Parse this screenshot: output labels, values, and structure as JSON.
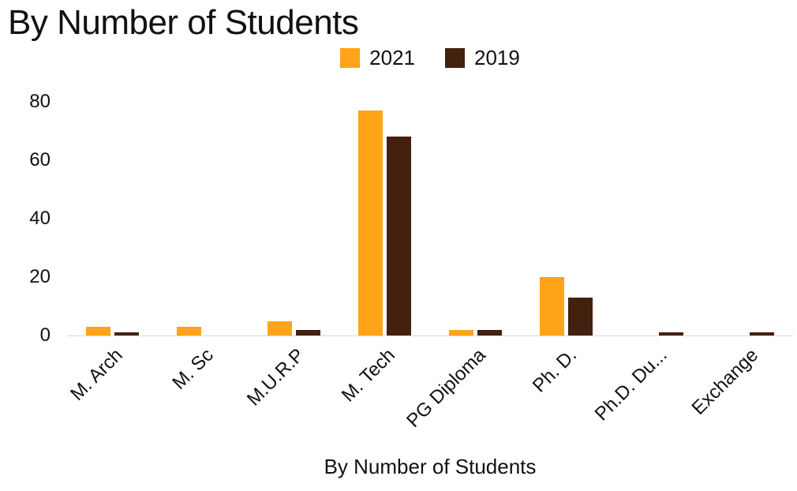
{
  "chart_data": {
    "type": "bar",
    "title": "By Number of Students",
    "xlabel": "By Number of Students",
    "ylabel": "",
    "categories": [
      "M. Arch",
      "M. Sc",
      "M.U.R.P",
      "M. Tech",
      "PG Diploma",
      "Ph. D.",
      "Ph.D. Du...",
      "Exchange"
    ],
    "series": [
      {
        "name": "2021",
        "color": "#FFA319",
        "values": [
          3,
          3,
          5,
          77,
          2,
          20,
          0,
          0
        ]
      },
      {
        "name": "2019",
        "color": "#44200E",
        "values": [
          1,
          0,
          2,
          68,
          2,
          13,
          1,
          1
        ]
      }
    ],
    "ylim": [
      0,
      80
    ],
    "yticks": [
      0,
      20,
      40,
      60,
      80
    ],
    "grid": false,
    "legend_position": "top-center",
    "background": "#ffffff",
    "text_color": "#111111",
    "axis_line_color": "#d8d8d8"
  }
}
